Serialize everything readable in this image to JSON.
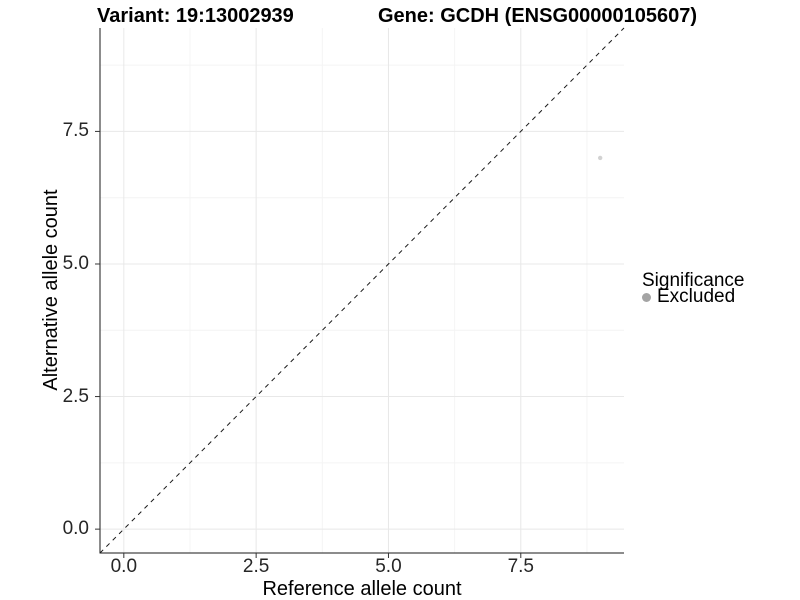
{
  "chart_data": {
    "type": "scatter",
    "title_left": "Variant: 19:13002939",
    "title_right": "Gene: GCDH (ENSG00000105607)",
    "xlabel": "Reference allele count",
    "ylabel": "Alternative allele count",
    "xlim": [
      -0.45,
      9.45
    ],
    "ylim": [
      -0.45,
      9.45
    ],
    "major_ticks": [
      0.0,
      2.5,
      5.0,
      7.5
    ],
    "tick_labels": [
      "0.0",
      "2.5",
      "5.0",
      "7.5"
    ],
    "minor_ticks": [
      1.25,
      3.75,
      6.25,
      8.75
    ],
    "grid": true,
    "legend_position": "right",
    "reference_line": {
      "kind": "identity y=x",
      "style": "dashed",
      "x1": -0.45,
      "y1": -0.45,
      "x2": 9.45,
      "y2": 9.45
    },
    "series": [
      {
        "name": "Excluded",
        "points": [
          {
            "x": 9,
            "y": 7
          }
        ],
        "point_color": "#d2d2d2",
        "point_radius": 2.2
      }
    ],
    "legend": {
      "title": "Significance",
      "items": [
        {
          "label": "Excluded",
          "key_color": "#a4a4a4"
        }
      ]
    },
    "colors": {
      "grid_major": "#e8e8e8",
      "grid_minor": "#f4f4f4",
      "axis_line": "#1a1a1a",
      "tick_mark": "#333333",
      "dashed_line": "#1a1a1a",
      "background": "#ffffff"
    }
  }
}
